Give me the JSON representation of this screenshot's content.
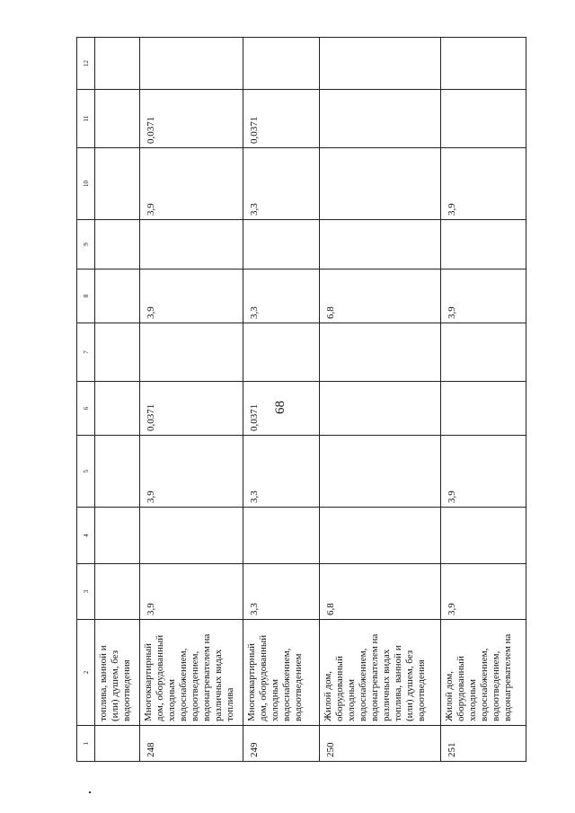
{
  "page_number": "68",
  "table": {
    "headers": [
      "1",
      "2",
      "3",
      "4",
      "5",
      "6",
      "7",
      "8",
      "9",
      "10",
      "11",
      "12"
    ],
    "rows": [
      [
        "",
        "топлива, ванной и (или) душем, без водоотведения",
        "",
        "",
        "",
        "",
        "",
        "",
        "",
        "",
        "",
        ""
      ],
      [
        "248",
        "Многоквартирный дом, оборудованный холодным водоснабжением, водоотведением, водонагревателем на различных видах топлива",
        "3,9",
        "",
        "3,9",
        "0,0371",
        "",
        "3,9",
        "",
        "3,9",
        "0,0371",
        ""
      ],
      [
        "249",
        "Многоквартирный дом, оборудованный холодным водоснабжением, водоотведением",
        "3,3",
        "",
        "3,3",
        "0,0371",
        "",
        "3,3",
        "",
        "3,3",
        "0,0371",
        ""
      ],
      [
        "250",
        "Жилой дом, оборудованный холодным водоснабжением, водонагревателем на различных видах топлива, ванной и (или) душем, без водоотведения",
        "6,8",
        "",
        "",
        "",
        "",
        "6,8",
        "",
        "",
        "",
        ""
      ],
      [
        "251",
        "Жилой дом, оборудованный холодным водоснабжением, водоотведением, водонагревателем на",
        "3,9",
        "",
        "3,9",
        "",
        "",
        "3,9",
        "",
        "3,9",
        "",
        ""
      ]
    ]
  }
}
